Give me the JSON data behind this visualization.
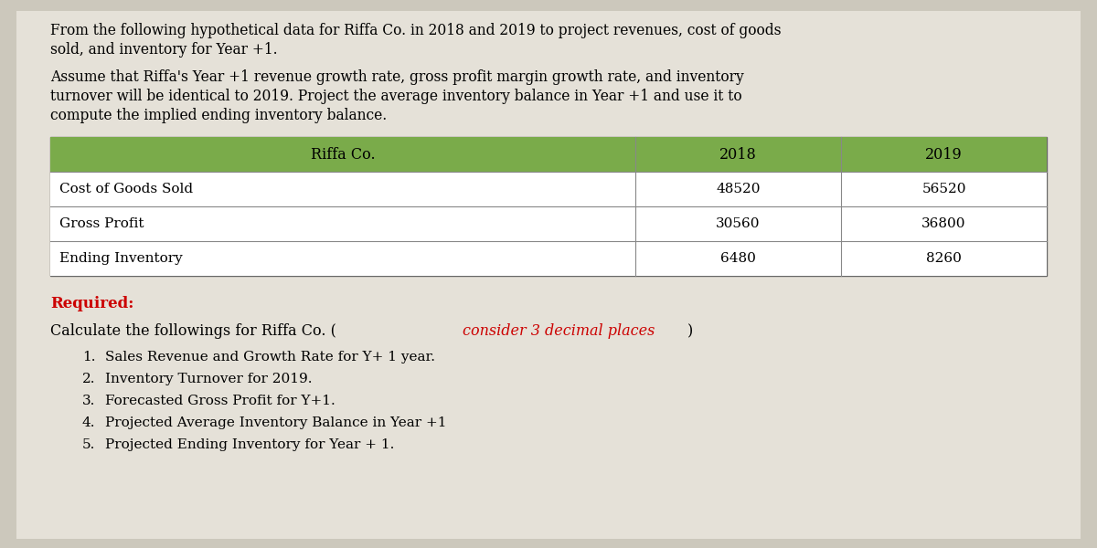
{
  "bg_color": "#ccc8bc",
  "content_bg": "#e5e1d8",
  "para1_line1": "From the following hypothetical data for Riffa Co. in 2018 and 2019 to project revenues, cost of goods",
  "para1_line2": "sold, and inventory for Year +1.",
  "para2_line1": "Assume that Riffa's Year +1 revenue growth rate, gross profit margin growth rate, and inventory",
  "para2_line2": "turnover will be identical to 2019. Project the average inventory balance in Year +1 and use it to",
  "para2_line3": "compute the implied ending inventory balance.",
  "table_header_bg": "#7aab4a",
  "table_header_col1": "Riffa Co.",
  "table_header_col2": "2018",
  "table_header_col3": "2019",
  "table_rows": [
    {
      "label": "Cost of Goods Sold",
      "val2018": "48520",
      "val2019": "56520"
    },
    {
      "label": "Gross Profit",
      "val2018": "30560",
      "val2019": "36800"
    },
    {
      "label": "Ending Inventory",
      "val2018": "6480",
      "val2019": "8260"
    }
  ],
  "required_label": "Required:",
  "required_color": "#cc0000",
  "calc_intro": "Calculate the followings for Riffa Co. (",
  "calc_italic_part": "consider 3 decimal places",
  "calc_end": ")",
  "items": [
    "Sales Revenue and Growth Rate for Y+ 1 year.",
    "Inventory Turnover for 2019.",
    "Forecasted Gross Profit for Y+1.",
    "Projected Average Inventory Balance in Year +1",
    "Projected Ending Inventory for Year + 1."
  ],
  "item_numbers": [
    "1.",
    "2.",
    "3.",
    "4.",
    "5."
  ]
}
